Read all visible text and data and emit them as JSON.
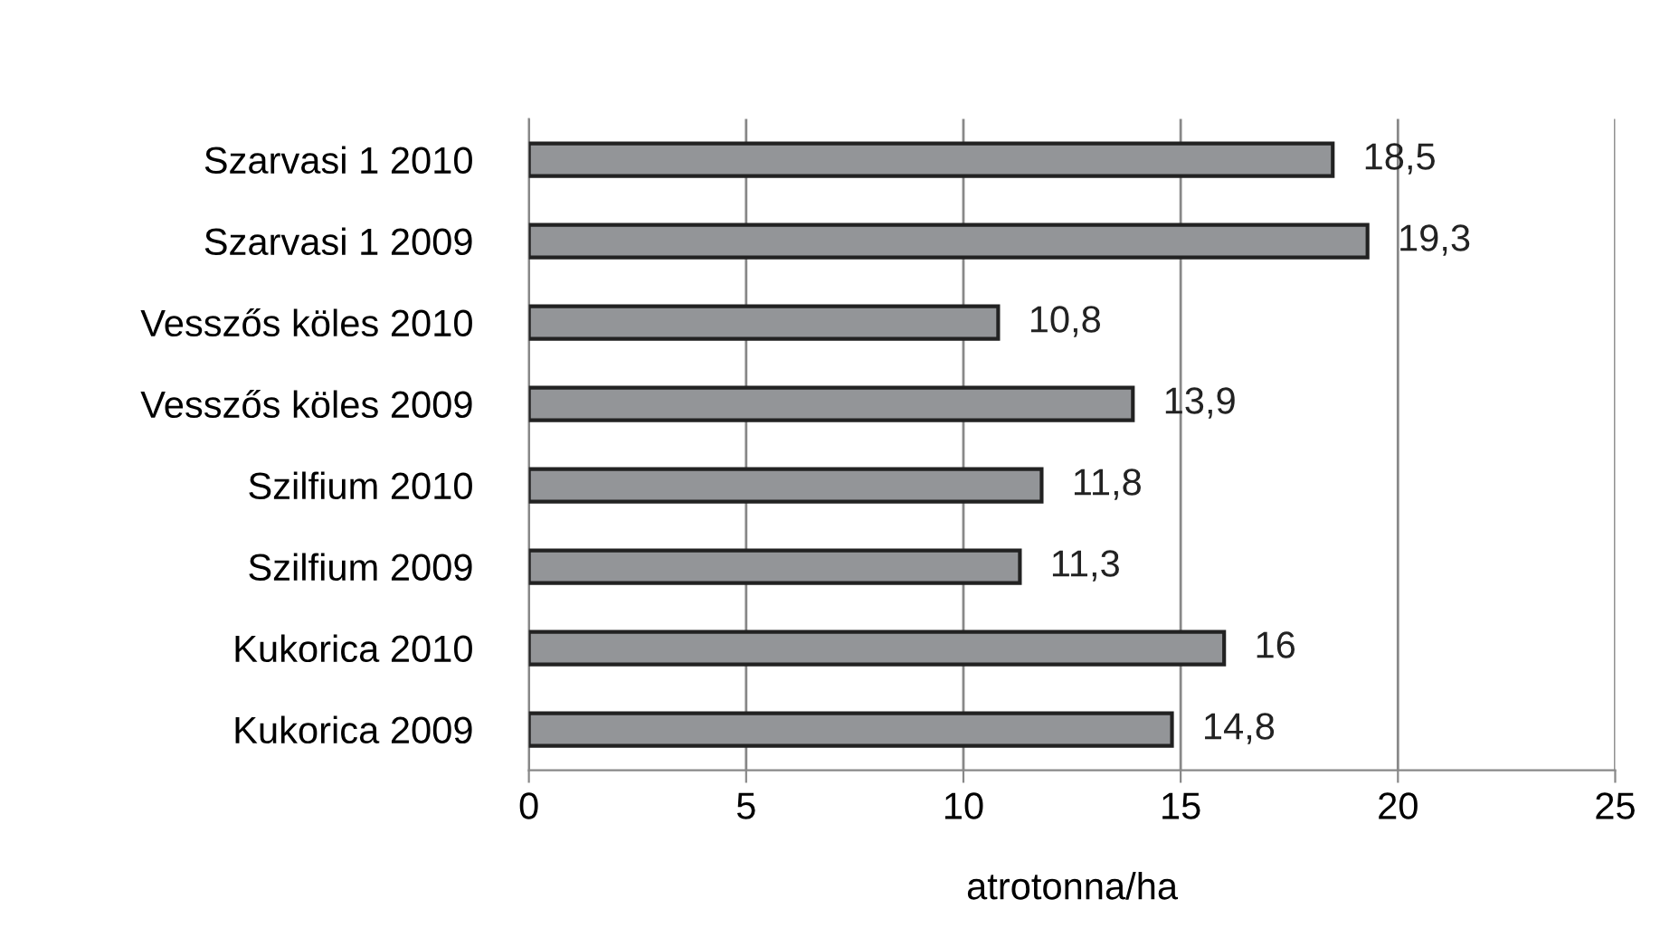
{
  "chart_data": {
    "type": "bar",
    "orientation": "horizontal",
    "xlabel": "atrotonna/ha",
    "categories": [
      "Szarvasi 1 2010",
      "Szarvasi 1 2009",
      "Vesszős köles 2010",
      "Vesszős köles 2009",
      "Szilfium 2010",
      "Szilfium 2009",
      "Kukorica 2010",
      "Kukorica 2009"
    ],
    "values": [
      18.5,
      19.3,
      10.8,
      13.9,
      11.8,
      11.3,
      16,
      14.8
    ],
    "value_labels": [
      "18,5",
      "19,3",
      "10,8",
      "13,9",
      "11,8",
      "11,3",
      "16",
      "14,8"
    ],
    "color": "#939598",
    "xlim": [
      0,
      25
    ],
    "xticks": [
      0,
      5,
      10,
      15,
      20,
      25
    ],
    "grid": "x"
  }
}
